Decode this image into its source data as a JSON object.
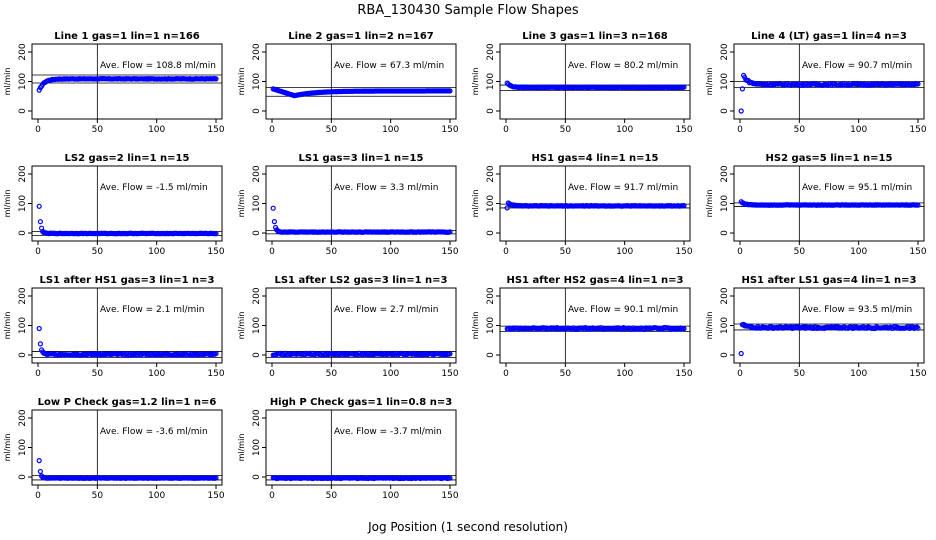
{
  "figure": {
    "title": "RBA_130430  Sample Flow Shapes",
    "xlabel": "Jog Position (1 second resolution)",
    "marker_color": "#0000ff"
  },
  "chart_data": [
    {
      "type": "scatter",
      "title": "Line 1 gas=1 lin=1 n=166",
      "ylabel": "ml/min",
      "annotation": "Ave. Flow =  108.8  ml/min",
      "xlim": [
        0,
        150
      ],
      "ylim": [
        0,
        200
      ],
      "xticks": [
        "0",
        "50",
        "100",
        "150"
      ],
      "yticks": [
        "0",
        "100",
        "200"
      ],
      "vline_x": 50,
      "hlines": [
        95,
        122
      ],
      "shape": {
        "kind": "rise",
        "start": 70,
        "end": 109,
        "tau": 4,
        "noise": 1,
        "n": 150
      }
    },
    {
      "type": "scatter",
      "title": "Line 2 gas=1 lin=2 n=167",
      "ylabel": "ml/min",
      "annotation": "Ave. Flow =  67.3  ml/min",
      "xlim": [
        0,
        150
      ],
      "ylim": [
        0,
        200
      ],
      "xticks": [
        "0",
        "50",
        "100",
        "150"
      ],
      "yticks": [
        "0",
        "100",
        "200"
      ],
      "vline_x": 50,
      "hlines": [
        50,
        80
      ],
      "shape": {
        "kind": "dip",
        "start": 75,
        "min": 52,
        "end": 68,
        "n": 150
      }
    },
    {
      "type": "scatter",
      "title": "Line 3 gas=1 lin=3 n=168",
      "ylabel": "ml/min",
      "annotation": "Ave. Flow =  80.2  ml/min",
      "xlim": [
        0,
        150
      ],
      "ylim": [
        0,
        200
      ],
      "xticks": [
        "0",
        "50",
        "100",
        "150"
      ],
      "yticks": [
        "0",
        "100",
        "200"
      ],
      "vline_x": 50,
      "hlines": [
        70,
        88
      ],
      "shape": {
        "kind": "decay",
        "start": 95,
        "end": 80,
        "tau": 3,
        "noise": 1,
        "n": 150
      }
    },
    {
      "type": "scatter",
      "title": "Line 4 (LT) gas=1 lin=4 n=3",
      "ylabel": "ml/min",
      "annotation": "Ave. Flow =  90.7  ml/min",
      "xlim": [
        0,
        150
      ],
      "ylim": [
        0,
        200
      ],
      "xticks": [
        "0",
        "50",
        "100",
        "150"
      ],
      "yticks": [
        "0",
        "100",
        "200"
      ],
      "vline_x": 50,
      "hlines": [
        80,
        100
      ],
      "shape": {
        "kind": "decay",
        "start": 120,
        "end": 90,
        "tau": 4,
        "noise": 3,
        "n": 150,
        "prefix": [
          0,
          75
        ]
      }
    },
    {
      "type": "scatter",
      "title": "LS2 gas=2 lin=1 n=15",
      "ylabel": "ml/min",
      "annotation": "Ave. Flow =  -1.5  ml/min",
      "xlim": [
        0,
        150
      ],
      "ylim": [
        0,
        200
      ],
      "xticks": [
        "0",
        "50",
        "100",
        "150"
      ],
      "yticks": [
        "0",
        "100",
        "200"
      ],
      "vline_x": 50,
      "hlines": [
        -8,
        5
      ],
      "shape": {
        "kind": "decay",
        "start": 90,
        "end": -1.5,
        "tau": 1.2,
        "noise": 1,
        "n": 150
      }
    },
    {
      "type": "scatter",
      "title": "LS1 gas=3 lin=1 n=15",
      "ylabel": "ml/min",
      "annotation": "Ave. Flow =  3.3  ml/min",
      "xlim": [
        0,
        150
      ],
      "ylim": [
        0,
        200
      ],
      "xticks": [
        "0",
        "50",
        "100",
        "150"
      ],
      "yticks": [
        "0",
        "100",
        "200"
      ],
      "vline_x": 50,
      "hlines": [
        -3,
        8
      ],
      "shape": {
        "kind": "decay",
        "start": 85,
        "end": 3.3,
        "tau": 1.2,
        "noise": 1,
        "n": 150
      }
    },
    {
      "type": "scatter",
      "title": "HS1 gas=4 lin=1 n=15",
      "ylabel": "ml/min",
      "annotation": "Ave. Flow =  91.7  ml/min",
      "xlim": [
        0,
        150
      ],
      "ylim": [
        0,
        200
      ],
      "xticks": [
        "0",
        "50",
        "100",
        "150"
      ],
      "yticks": [
        "0",
        "100",
        "200"
      ],
      "vline_x": 50,
      "hlines": [
        85,
        98
      ],
      "shape": {
        "kind": "decay",
        "start": 102,
        "end": 92,
        "tau": 3,
        "noise": 1,
        "n": 150,
        "prefix": [
          85
        ]
      }
    },
    {
      "type": "scatter",
      "title": "HS2 gas=5 lin=1 n=15",
      "ylabel": "ml/min",
      "annotation": "Ave. Flow =  95.1  ml/min",
      "xlim": [
        0,
        150
      ],
      "ylim": [
        0,
        200
      ],
      "xticks": [
        "0",
        "50",
        "100",
        "150"
      ],
      "yticks": [
        "0",
        "100",
        "200"
      ],
      "vline_x": 50,
      "hlines": [
        90,
        102
      ],
      "shape": {
        "kind": "decay",
        "start": 106,
        "end": 95,
        "tau": 3,
        "noise": 1,
        "n": 150
      }
    },
    {
      "type": "scatter",
      "title": "LS1 after HS1 gas=3 lin=1 n=3",
      "ylabel": "ml/min",
      "annotation": "Ave. Flow =  2.1  ml/min",
      "xlim": [
        0,
        150
      ],
      "ylim": [
        0,
        200
      ],
      "xticks": [
        "0",
        "50",
        "100",
        "150"
      ],
      "yticks": [
        "0",
        "100",
        "200"
      ],
      "vline_x": 50,
      "hlines": [
        -8,
        12
      ],
      "shape": {
        "kind": "decay",
        "start": 88,
        "end": 2.1,
        "tau": 1.2,
        "noise": 3,
        "n": 150
      }
    },
    {
      "type": "scatter",
      "title": "LS1 after LS2 gas=3 lin=1 n=3",
      "ylabel": "ml/min",
      "annotation": "Ave. Flow =  2.7  ml/min",
      "xlim": [
        0,
        150
      ],
      "ylim": [
        0,
        200
      ],
      "xticks": [
        "0",
        "50",
        "100",
        "150"
      ],
      "yticks": [
        "0",
        "100",
        "200"
      ],
      "vline_x": 50,
      "hlines": [
        -8,
        12
      ],
      "shape": {
        "kind": "flat",
        "end": 2.7,
        "noise": 3,
        "n": 150
      }
    },
    {
      "type": "scatter",
      "title": "HS1 after HS2 gas=4 lin=1 n=3",
      "ylabel": "ml/min",
      "annotation": "Ave. Flow =  90.1  ml/min",
      "xlim": [
        0,
        150
      ],
      "ylim": [
        0,
        200
      ],
      "xticks": [
        "0",
        "50",
        "100",
        "150"
      ],
      "yticks": [
        "0",
        "100",
        "200"
      ],
      "vline_x": 50,
      "hlines": [
        80,
        98
      ],
      "shape": {
        "kind": "flat",
        "end": 90,
        "noise": 3,
        "n": 150
      }
    },
    {
      "type": "scatter",
      "title": "HS1 after LS1 gas=4 lin=1 n=3",
      "ylabel": "ml/min",
      "annotation": "Ave. Flow =  93.5  ml/min",
      "xlim": [
        0,
        150
      ],
      "ylim": [
        0,
        200
      ],
      "xticks": [
        "0",
        "50",
        "100",
        "150"
      ],
      "yticks": [
        "0",
        "100",
        "200"
      ],
      "vline_x": 50,
      "hlines": [
        85,
        105
      ],
      "shape": {
        "kind": "decay",
        "start": 103,
        "end": 93,
        "tau": 5,
        "noise": 3,
        "n": 150,
        "prefix": [
          5
        ]
      }
    },
    {
      "type": "scatter",
      "title": "Low P Check gas=1.2 lin=1 n=6",
      "ylabel": "ml/min",
      "annotation": "Ave. Flow =  -3.6  ml/min",
      "xlim": [
        0,
        150
      ],
      "ylim": [
        0,
        200
      ],
      "xticks": [
        "0",
        "50",
        "100",
        "150"
      ],
      "yticks": [
        "0",
        "100",
        "200"
      ],
      "vline_x": 50,
      "hlines": [
        -10,
        5
      ],
      "shape": {
        "kind": "decay",
        "start": 55,
        "end": -3.6,
        "tau": 1,
        "noise": 1,
        "n": 150
      }
    },
    {
      "type": "scatter",
      "title": "High P Check gas=1 lin=0.8 n=3",
      "ylabel": "ml/min",
      "annotation": "Ave. Flow =  -3.7  ml/min",
      "xlim": [
        0,
        150
      ],
      "ylim": [
        0,
        200
      ],
      "xticks": [
        "0",
        "50",
        "100",
        "150"
      ],
      "yticks": [
        "0",
        "100",
        "200"
      ],
      "vline_x": 50,
      "hlines": [
        -10,
        5
      ],
      "shape": {
        "kind": "flat",
        "end": -3.7,
        "noise": 1.5,
        "n": 150
      }
    }
  ]
}
